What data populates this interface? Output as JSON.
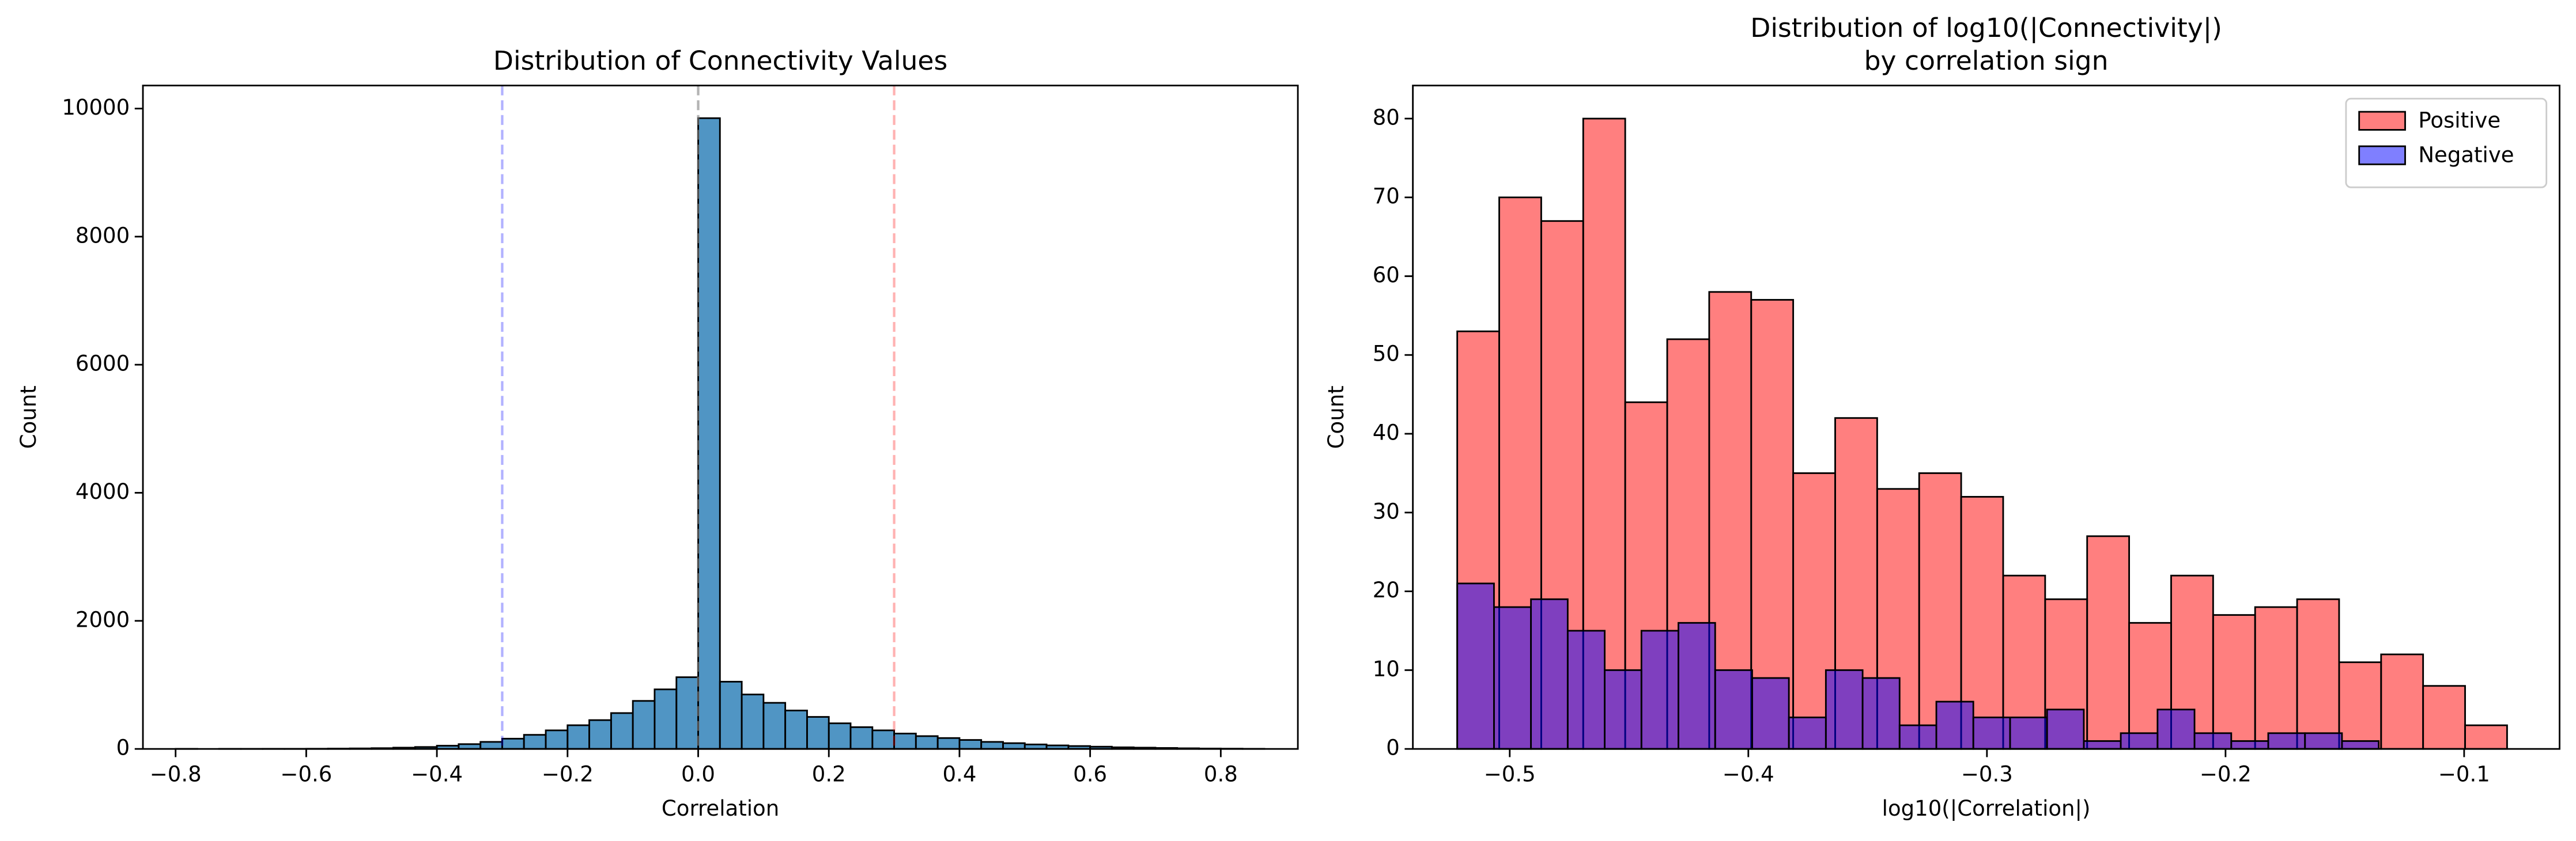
{
  "chart_data": [
    {
      "type": "histogram",
      "title": [
        "Distribution of Connectivity Values"
      ],
      "xlabel": "Correlation",
      "ylabel": "Count",
      "bins": [
        -0.8,
        -0.7667,
        -0.7333,
        -0.7,
        -0.6667,
        -0.6333,
        -0.6,
        -0.5667,
        -0.5333,
        -0.5,
        -0.4667,
        -0.4333,
        -0.4,
        -0.3667,
        -0.3333,
        -0.3,
        -0.2667,
        -0.2333,
        -0.2,
        -0.1667,
        -0.1333,
        -0.1,
        -0.0667,
        -0.0333,
        0,
        0.0333,
        0.0667,
        0.1,
        0.1333,
        0.1667,
        0.2,
        0.2333,
        0.2667,
        0.3,
        0.3333,
        0.3667,
        0.4,
        0.4333,
        0.4667,
        0.5,
        0.5333,
        0.5667,
        0.6,
        0.6333,
        0.6667,
        0.7,
        0.7333,
        0.7667,
        0.8,
        0.8333,
        0.8667
      ],
      "values": [
        1,
        0,
        1,
        1,
        2,
        2,
        3,
        5,
        8,
        12,
        20,
        30,
        50,
        75,
        110,
        160,
        220,
        290,
        370,
        450,
        560,
        750,
        930,
        1120,
        9850,
        1050,
        850,
        720,
        600,
        500,
        400,
        340,
        290,
        240,
        200,
        170,
        140,
        110,
        90,
        70,
        55,
        45,
        35,
        25,
        20,
        15,
        10,
        6,
        4,
        2
      ],
      "color": "#1f77b4",
      "alpha": 0.78,
      "edgecolor": "#000000",
      "vlines": [
        {
          "x": -0.3,
          "color": "#0000ff",
          "alpha": 0.3
        },
        {
          "x": 0,
          "color": "#808080",
          "alpha": 0.6
        },
        {
          "x": 0.3,
          "color": "#ff0000",
          "alpha": 0.3
        }
      ],
      "xlim": [
        -0.85,
        0.918
      ],
      "ylim": [
        0,
        10360
      ],
      "xticks": [
        {
          "value": -0.8,
          "label": "−0.8"
        },
        {
          "value": -0.6,
          "label": "−0.6"
        },
        {
          "value": -0.4,
          "label": "−0.4"
        },
        {
          "value": -0.2,
          "label": "−0.2"
        },
        {
          "value": 0,
          "label": "0.0"
        },
        {
          "value": 0.2,
          "label": "0.2"
        },
        {
          "value": 0.4,
          "label": "0.4"
        },
        {
          "value": 0.6,
          "label": "0.6"
        },
        {
          "value": 0.8,
          "label": "0.8"
        }
      ],
      "yticks": [
        0,
        2000,
        4000,
        6000,
        8000,
        10000
      ],
      "grid": false
    },
    {
      "type": "histogram",
      "title": [
        "Distribution of log10(|Connectivity|)",
        "by correlation sign"
      ],
      "xlabel": "log10(|Correlation|)",
      "ylabel": "Count",
      "series": [
        {
          "name": "Positive",
          "color": "#ff0000",
          "alpha": 0.5,
          "bins": [
            -0.522,
            -0.5044,
            -0.4868,
            -0.4692,
            -0.4516,
            -0.434,
            -0.4164,
            -0.3988,
            -0.3812,
            -0.3636,
            -0.346,
            -0.3284,
            -0.3108,
            -0.2932,
            -0.2756,
            -0.258,
            -0.2404,
            -0.2228,
            -0.2052,
            -0.1876,
            -0.17,
            -0.1524,
            -0.1348,
            -0.1172,
            -0.0996,
            -0.082
          ],
          "values": [
            53,
            70,
            67,
            80,
            44,
            52,
            58,
            57,
            35,
            42,
            33,
            35,
            32,
            22,
            19,
            27,
            16,
            22,
            17,
            18,
            19,
            11,
            12,
            8,
            3
          ]
        },
        {
          "name": "Negative",
          "color": "#0000ff",
          "alpha": 0.5,
          "bins": [
            -0.522,
            -0.5066,
            -0.4911,
            -0.4757,
            -0.4602,
            -0.4448,
            -0.4293,
            -0.4139,
            -0.3984,
            -0.383,
            -0.3675,
            -0.3521,
            -0.3366,
            -0.3212,
            -0.3057,
            -0.2903,
            -0.2748,
            -0.2594,
            -0.2439,
            -0.2285,
            -0.213,
            -0.1976,
            -0.1821,
            -0.1667,
            -0.1512,
            -0.1358
          ],
          "values": [
            21,
            18,
            19,
            15,
            10,
            15,
            16,
            10,
            9,
            4,
            10,
            9,
            3,
            6,
            4,
            4,
            5,
            1,
            2,
            5,
            2,
            1,
            2,
            2,
            1
          ]
        }
      ],
      "edgecolor": "#000000",
      "legend": "upper right",
      "xlim": [
        -0.5406,
        -0.06
      ],
      "ylim": [
        0,
        84.2
      ],
      "xticks": [
        {
          "value": -0.5,
          "label": "−0.5"
        },
        {
          "value": -0.4,
          "label": "−0.4"
        },
        {
          "value": -0.3,
          "label": "−0.3"
        },
        {
          "value": -0.2,
          "label": "−0.2"
        },
        {
          "value": -0.1,
          "label": "−0.1"
        }
      ],
      "yticks": [
        0,
        10,
        20,
        30,
        40,
        50,
        60,
        70,
        80
      ],
      "grid": false
    }
  ]
}
